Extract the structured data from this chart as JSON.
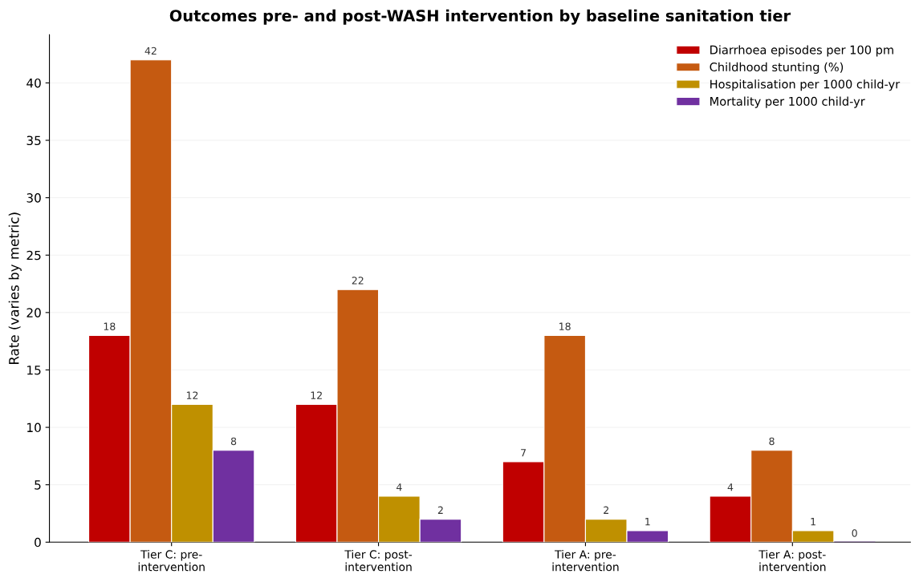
{
  "chart_data": {
    "type": "bar",
    "title": "Outcomes pre- and post-WASH intervention by baseline sanitation tier",
    "ylabel": "Rate (varies by metric)",
    "categories": [
      "Tier C: pre-\nintervention",
      "Tier C: post-\nintervention",
      "Tier A: pre-\nintervention",
      "Tier A: post-\nintervention"
    ],
    "series": [
      {
        "name": "Diarrhoea episodes per 100 pm",
        "color": "#c00000",
        "values": [
          18,
          12,
          7,
          4
        ]
      },
      {
        "name": "Childhood stunting (%)",
        "color": "#c55a11",
        "values": [
          42,
          22,
          18,
          8
        ]
      },
      {
        "name": "Hospitalisation per 1000 child-yr",
        "color": "#bf9000",
        "values": [
          12,
          4,
          2,
          1
        ]
      },
      {
        "name": "Mortality per 1000 child-yr",
        "color": "#7030a0",
        "values": [
          8,
          2,
          1,
          0
        ]
      }
    ],
    "ylim": [
      0,
      44.2
    ],
    "yticks": [
      0,
      5,
      10,
      15,
      20,
      25,
      30,
      35,
      40
    ],
    "grid": "y",
    "legend": "top right",
    "data_labels": true
  }
}
